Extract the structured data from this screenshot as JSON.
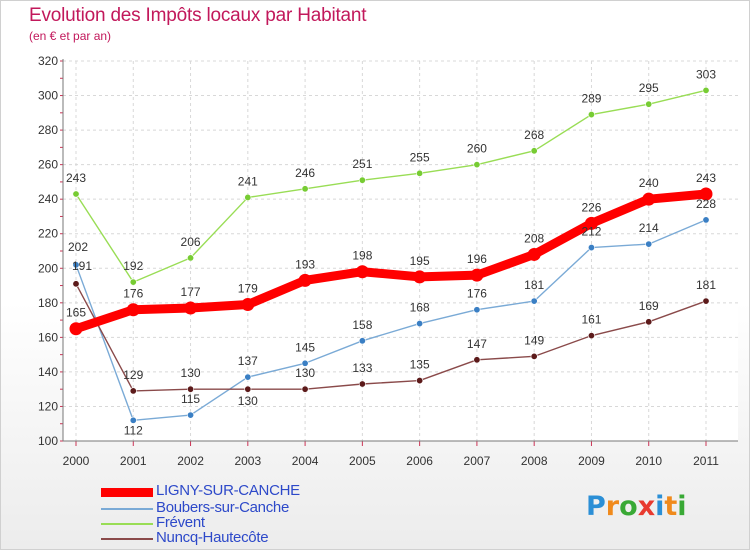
{
  "title": "Evolution des Impôts locaux par Habitant",
  "subtitle": "(en € et par an)",
  "logo": {
    "letters": [
      "P",
      "r",
      "o",
      "x",
      "i",
      "t",
      "i"
    ],
    "colors": [
      "#2b8fd6",
      "#f08a1c",
      "#39a935",
      "#e83a2f",
      "#2b8fd6",
      "#f08a1c",
      "#39a935"
    ]
  },
  "chart_data": {
    "type": "line",
    "x": [
      "2000",
      "2001",
      "2002",
      "2003",
      "2004",
      "2005",
      "2006",
      "2007",
      "2008",
      "2009",
      "2010",
      "2011"
    ],
    "ylim": [
      100,
      320
    ],
    "yticks": [
      100,
      120,
      140,
      160,
      180,
      200,
      220,
      240,
      260,
      280,
      300,
      320
    ],
    "grid": true,
    "legend_position": "bottom-left",
    "series": [
      {
        "name": "LIGNY-SUR-CANCHE",
        "color": "#ff0000",
        "point_color": "#ff0000",
        "values": [
          165,
          176,
          177,
          179,
          193,
          198,
          195,
          196,
          208,
          226,
          240,
          243
        ]
      },
      {
        "name": "Boubers-sur-Canche",
        "color": "#7aaad6",
        "point_color": "#3a7fc4",
        "values": [
          202,
          112,
          115,
          137,
          145,
          158,
          168,
          176,
          181,
          212,
          214,
          228
        ]
      },
      {
        "name": "Frévent",
        "color": "#99dd55",
        "point_color": "#77cc33",
        "values": [
          243,
          192,
          206,
          241,
          246,
          251,
          255,
          260,
          268,
          289,
          295,
          303
        ]
      },
      {
        "name": "Nuncq-Hautecôte",
        "color": "#8a4a4a",
        "point_color": "#5c1a1a",
        "values": [
          191,
          129,
          130,
          130,
          130,
          133,
          135,
          147,
          149,
          161,
          169,
          181
        ]
      }
    ]
  }
}
